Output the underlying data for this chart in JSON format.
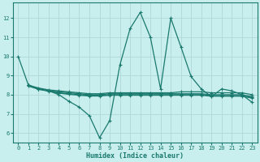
{
  "xlabel": "Humidex (Indice chaleur)",
  "xlim": [
    -0.5,
    23.5
  ],
  "ylim": [
    5.5,
    12.8
  ],
  "yticks": [
    6,
    7,
    8,
    9,
    10,
    11,
    12
  ],
  "xticks": [
    0,
    1,
    2,
    3,
    4,
    5,
    6,
    7,
    8,
    9,
    10,
    11,
    12,
    13,
    14,
    15,
    16,
    17,
    18,
    19,
    20,
    21,
    22,
    23
  ],
  "bg_color": "#c8eeee",
  "grid_color": "#b0d8d8",
  "line_color": "#1a7a6e",
  "line1_y": [
    10.0,
    8.5,
    8.3,
    8.2,
    8.0,
    7.65,
    7.35,
    6.9,
    5.75,
    6.65,
    9.55,
    11.45,
    12.3,
    11.0,
    8.3,
    12.0,
    10.5,
    8.95,
    8.3,
    7.9,
    8.3,
    8.2,
    8.0,
    7.6
  ],
  "line2_y": [
    null,
    8.5,
    8.35,
    8.25,
    8.2,
    8.15,
    8.1,
    8.05,
    8.05,
    8.1,
    8.1,
    8.1,
    8.1,
    8.1,
    8.1,
    8.1,
    8.15,
    8.15,
    8.15,
    8.1,
    8.1,
    8.1,
    8.1,
    8.0
  ],
  "line3_y": [
    null,
    8.5,
    8.3,
    8.2,
    8.15,
    8.1,
    8.05,
    8.0,
    8.0,
    8.05,
    8.05,
    8.05,
    8.05,
    8.05,
    8.05,
    8.05,
    8.05,
    8.05,
    8.05,
    8.0,
    8.0,
    8.0,
    8.0,
    7.9
  ],
  "line4_y": [
    null,
    8.5,
    8.3,
    8.2,
    8.1,
    8.05,
    8.0,
    7.97,
    7.97,
    8.0,
    8.0,
    8.0,
    8.0,
    8.0,
    8.0,
    8.0,
    8.0,
    8.0,
    8.0,
    7.95,
    7.95,
    7.95,
    7.95,
    7.85
  ],
  "line5_y": [
    null,
    8.45,
    8.28,
    8.18,
    8.08,
    8.02,
    7.97,
    7.93,
    7.93,
    7.97,
    7.97,
    7.97,
    7.97,
    7.97,
    7.97,
    7.97,
    7.97,
    7.97,
    7.97,
    7.92,
    7.92,
    7.92,
    7.92,
    7.82
  ]
}
